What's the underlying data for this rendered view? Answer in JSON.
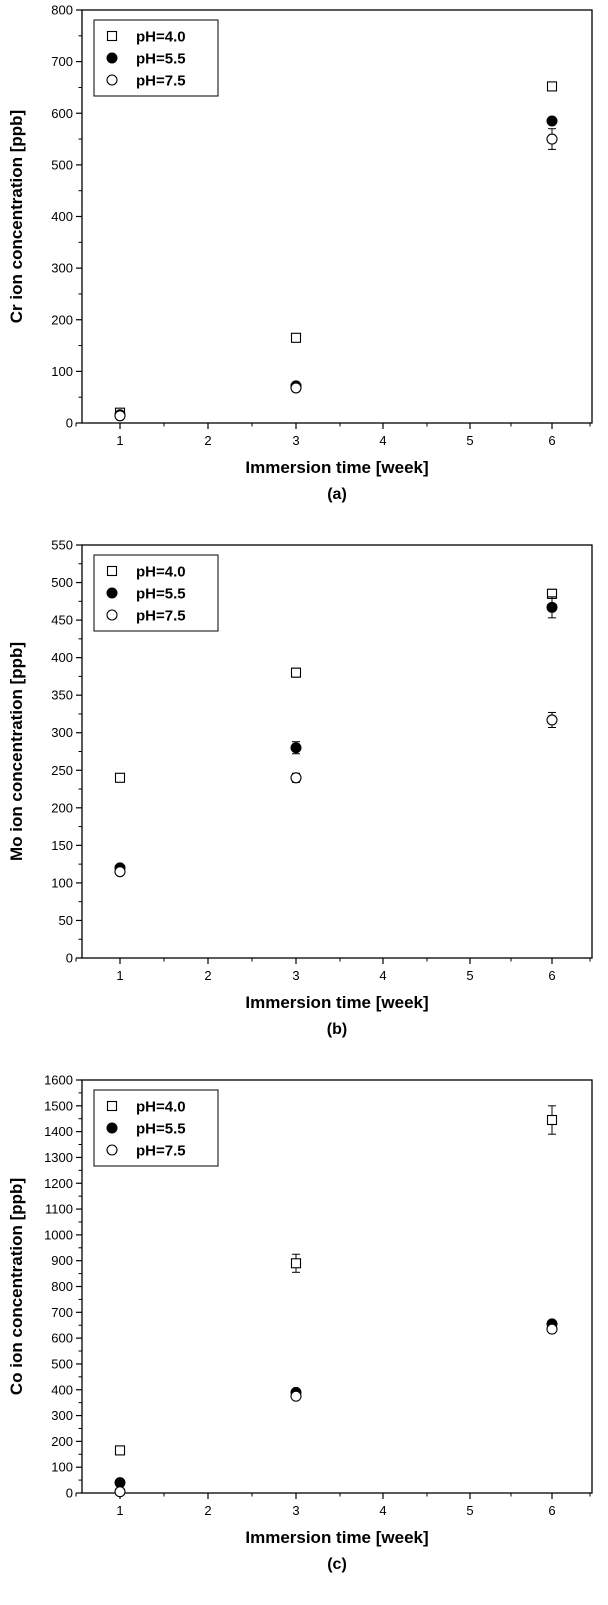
{
  "chart_data": [
    {
      "type": "scatter",
      "caption": "(a)",
      "xlabel": "Immersion time [week]",
      "ylabel": "Cr ion concentration [ppb]",
      "ylim": [
        0,
        800
      ],
      "yticks": [
        0,
        100,
        200,
        300,
        400,
        500,
        600,
        700,
        800
      ],
      "x_categories": [
        "1",
        "2",
        "3",
        "4",
        "5",
        "6"
      ],
      "legend_position": "top-left",
      "series": [
        {
          "name": "pH=4.0",
          "marker": "open-square",
          "points": [
            {
              "x": "1",
              "y": 20,
              "err": 4
            },
            {
              "x": "3",
              "y": 165,
              "err": 5
            },
            {
              "x": "6",
              "y": 652,
              "err": 6
            }
          ]
        },
        {
          "name": "pH=5.5",
          "marker": "filled-circle",
          "points": [
            {
              "x": "1",
              "y": 16,
              "err": 3
            },
            {
              "x": "3",
              "y": 72,
              "err": 4
            },
            {
              "x": "6",
              "y": 585,
              "err": 5
            }
          ]
        },
        {
          "name": "pH=7.5",
          "marker": "open-circle",
          "points": [
            {
              "x": "1",
              "y": 14,
              "err": 3
            },
            {
              "x": "3",
              "y": 68,
              "err": 4
            },
            {
              "x": "6",
              "y": 550,
              "err": 20
            }
          ]
        }
      ]
    },
    {
      "type": "scatter",
      "caption": "(b)",
      "xlabel": "Immersion time [week]",
      "ylabel": "Mo ion concentration [ppb]",
      "ylim": [
        0,
        550
      ],
      "yticks": [
        0,
        50,
        100,
        150,
        200,
        250,
        300,
        350,
        400,
        450,
        500,
        550
      ],
      "x_categories": [
        "1",
        "2",
        "3",
        "4",
        "5",
        "6"
      ],
      "legend_position": "top-left",
      "series": [
        {
          "name": "pH=4.0",
          "marker": "open-square",
          "points": [
            {
              "x": "1",
              "y": 240,
              "err": 3
            },
            {
              "x": "3",
              "y": 380,
              "err": 6
            },
            {
              "x": "6",
              "y": 485,
              "err": 6
            }
          ]
        },
        {
          "name": "pH=5.5",
          "marker": "filled-circle",
          "points": [
            {
              "x": "1",
              "y": 120,
              "err": 3
            },
            {
              "x": "3",
              "y": 280,
              "err": 8
            },
            {
              "x": "6",
              "y": 467,
              "err": 14
            }
          ]
        },
        {
          "name": "pH=7.5",
          "marker": "open-circle",
          "points": [
            {
              "x": "1",
              "y": 115,
              "err": 3
            },
            {
              "x": "3",
              "y": 240,
              "err": 6
            },
            {
              "x": "6",
              "y": 317,
              "err": 10
            }
          ]
        }
      ]
    },
    {
      "type": "scatter",
      "caption": "(c)",
      "xlabel": "Immersion time [week]",
      "ylabel": "Co ion concentration [ppb]",
      "ylim": [
        0,
        1600
      ],
      "yticks": [
        0,
        100,
        200,
        300,
        400,
        500,
        600,
        700,
        800,
        900,
        1000,
        1100,
        1200,
        1300,
        1400,
        1500,
        1600
      ],
      "x_categories": [
        "1",
        "2",
        "3",
        "4",
        "5",
        "6"
      ],
      "legend_position": "top-left",
      "series": [
        {
          "name": "pH=4.0",
          "marker": "open-square",
          "points": [
            {
              "x": "1",
              "y": 165,
              "err": 10
            },
            {
              "x": "3",
              "y": 890,
              "err": 35
            },
            {
              "x": "6",
              "y": 1445,
              "err": 55
            }
          ]
        },
        {
          "name": "pH=5.5",
          "marker": "filled-circle",
          "points": [
            {
              "x": "1",
              "y": 40,
              "err": 5
            },
            {
              "x": "3",
              "y": 390,
              "err": 8
            },
            {
              "x": "6",
              "y": 655,
              "err": 8
            }
          ]
        },
        {
          "name": "pH=7.5",
          "marker": "open-circle",
          "points": [
            {
              "x": "1",
              "y": 5,
              "err": 3
            },
            {
              "x": "3",
              "y": 375,
              "err": 8
            },
            {
              "x": "6",
              "y": 635,
              "err": 8
            }
          ]
        }
      ]
    }
  ]
}
